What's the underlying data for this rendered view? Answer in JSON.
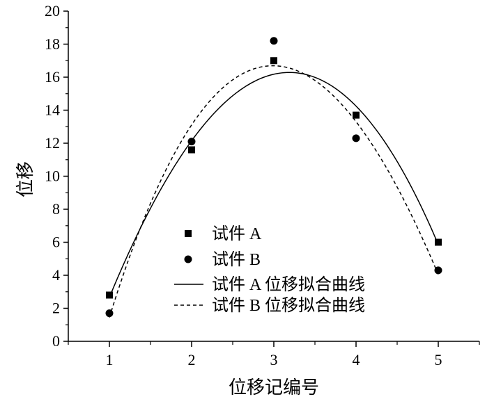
{
  "chart_data": {
    "type": "scatter",
    "title": "",
    "xlabel": "位移记编号",
    "ylabel": "位移",
    "xlim": [
      0.5,
      5.5
    ],
    "ylim": [
      0,
      20
    ],
    "xticks": [
      "1",
      "2",
      "3",
      "4",
      "5"
    ],
    "yticks": [
      "0",
      "2",
      "4",
      "6",
      "8",
      "10",
      "12",
      "14",
      "16",
      "18",
      "20"
    ],
    "grid": false,
    "legend_position": "center-left",
    "series": [
      {
        "name": "试件 A",
        "marker": "square",
        "x": [
          1,
          2,
          3,
          4,
          5
        ],
        "y": [
          2.8,
          11.6,
          17.0,
          13.7,
          6.0
        ]
      },
      {
        "name": "试件 B",
        "marker": "circle",
        "x": [
          1,
          2,
          3,
          4,
          5
        ],
        "y": [
          1.7,
          12.1,
          18.2,
          12.3,
          4.3
        ]
      },
      {
        "name": "试件 A 位移拟合曲线",
        "line": "solid",
        "fit_of": "试件 A"
      },
      {
        "name": "试件 B 位移拟合曲线",
        "line": "dashed",
        "fit_of": "试件 B"
      }
    ],
    "color": "#000000"
  }
}
